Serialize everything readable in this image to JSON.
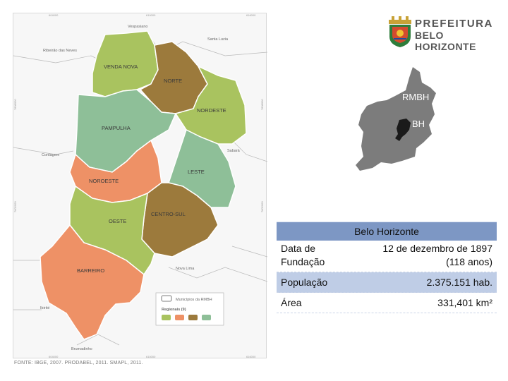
{
  "map": {
    "regions": [
      "VENDA NOVA",
      "NORTE",
      "NORDESTE",
      "PAMPULHA",
      "LESTE",
      "NOROESTE",
      "CENTRO-SUL",
      "OESTE",
      "BARREIRO"
    ],
    "cities": {
      "vespasiano": "Vespasiano",
      "ribeirao": "Ribeirão das Neves",
      "santa_luzia": "Santa Luzia",
      "contagem": "Contagem",
      "sabara": "Sabará",
      "nova_lima": "Nova Lima",
      "ibirite": "Ibirité",
      "brumadinho": "Brumadinho"
    },
    "ticks": [
      "604000",
      "610000",
      "616000",
      "7808000",
      "7802000",
      "7796000",
      "7790000"
    ],
    "legend": {
      "municipios": "Municípios da RMBH",
      "regionais": "Regionais (9)"
    },
    "colors": {
      "green_light": "#a9c35f",
      "brown": "#9c7a3c",
      "green_blue": "#8ebf98",
      "orange": "#ee9166"
    },
    "source": "FONTE: IBGE, 2007. PRODABEL, 2011. SMAPL, 2011."
  },
  "inset": {
    "rmbh": "RMBH",
    "bh": "BH"
  },
  "logo": {
    "line1": "PREFEITURA",
    "line2": "BELO HORIZONTE",
    "icon": "city-coat-of-arms-icon"
  },
  "info_table": {
    "title": "Belo Horizonte",
    "rows": [
      {
        "label": "Data de Fundação",
        "value": "12 de dezembro de 1897 (118 anos)"
      },
      {
        "label": "População",
        "value": "2.375.151 hab."
      },
      {
        "label": "Área",
        "value": "331,401 km²"
      }
    ]
  }
}
